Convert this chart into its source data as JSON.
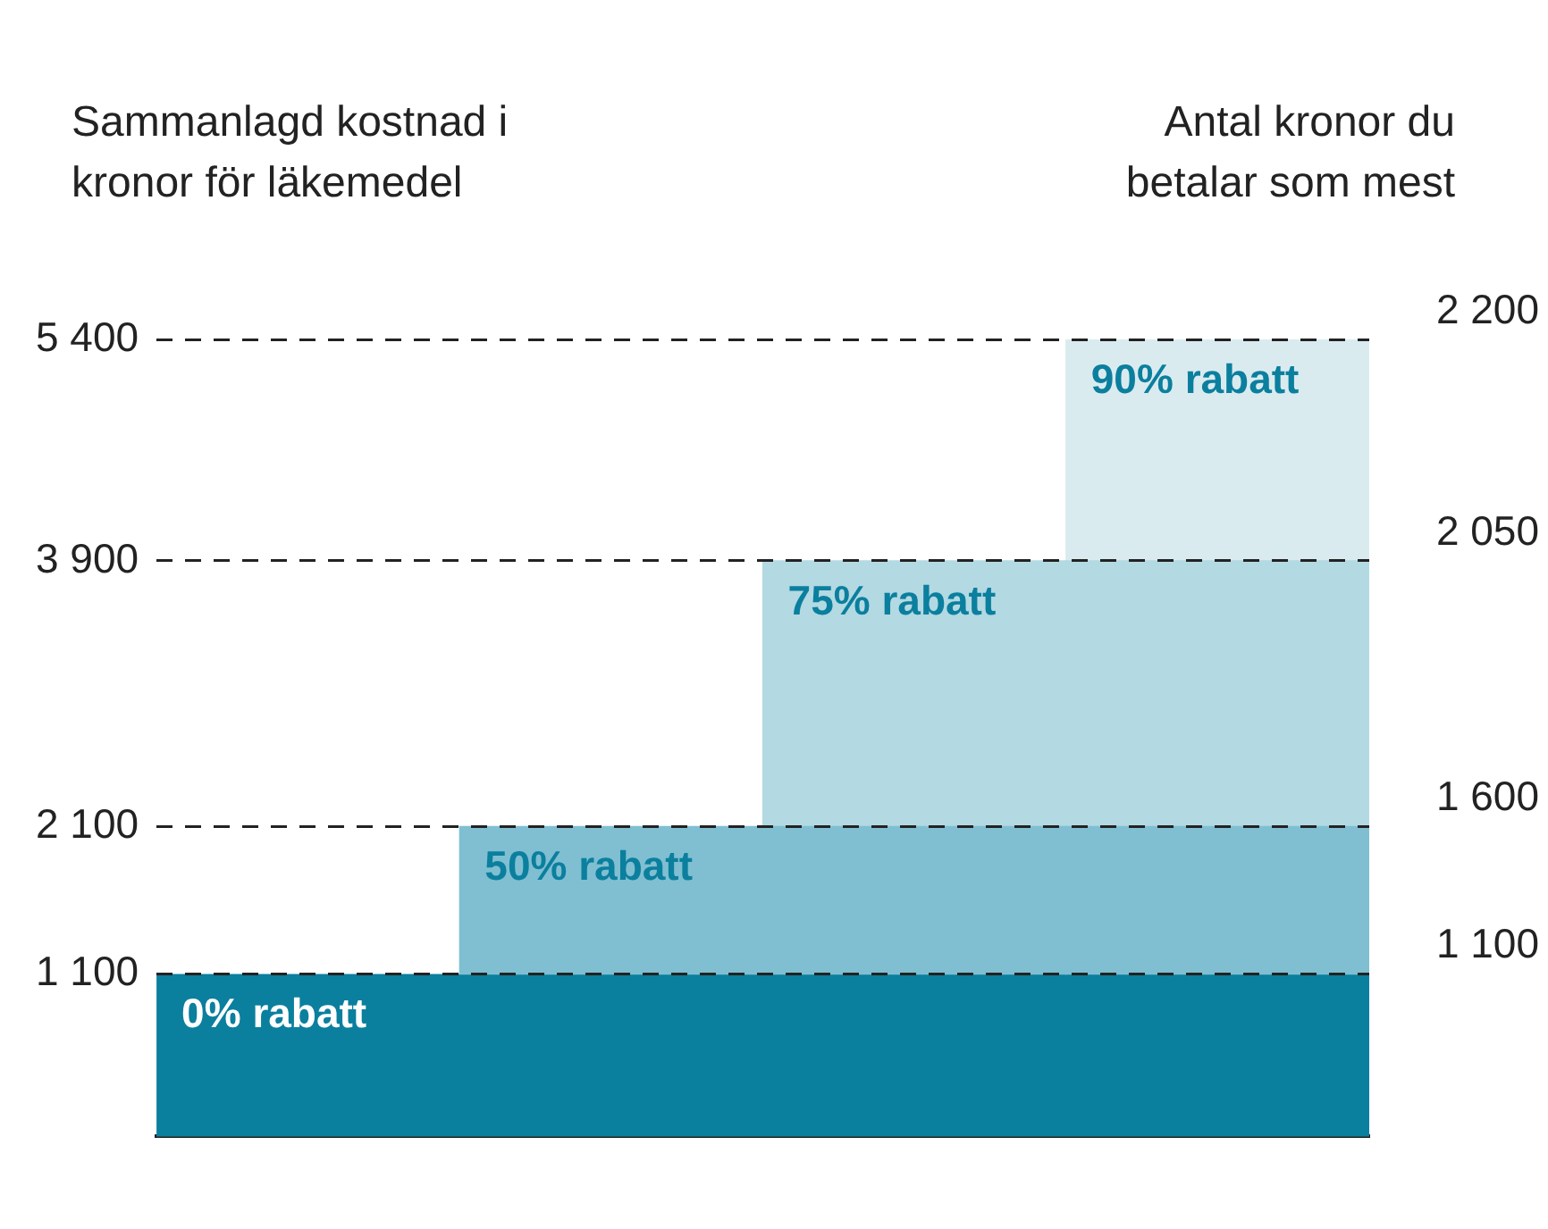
{
  "chart_data": {
    "type": "bar",
    "ylabel": "Sammanlagd kostnad i kronor för läkemedel",
    "annotations": [
      "Antal kronor du betalar som mest",
      "1 100",
      "1 600",
      "2 050",
      "2 200"
    ],
    "categories": [
      null,
      null,
      null,
      null
    ],
    "series": [
      {
        "name": "50% rabatt",
        "color": "#7fbfd1",
        "values": [
          null,
          1000,
          1000,
          1000
        ],
        "base": [
          null,
          1100,
          1100,
          1100
        ]
      },
      {
        "name": "75% rabatt",
        "color": "#b3d9e3",
        "values": [
          null,
          null,
          1800,
          1800
        ],
        "base": [
          null,
          null,
          2100,
          2100
        ]
      },
      {
        "name": "90% rabatt",
        "color": "#daebf0",
        "values": [
          null,
          null,
          null,
          1500
        ],
        "base": [
          null,
          null,
          null,
          3900
        ]
      }
    ],
    "bands": [
      {
        "axis": "y",
        "from": 0,
        "to": 1100,
        "label": "0% rabatt",
        "color": "#0b7f9e"
      }
    ],
    "ylim": [
      0,
      5400
    ],
    "yticks": [
      {
        "value": 1100,
        "label": "1 100"
      },
      {
        "value": 2100,
        "label": "2 100"
      },
      {
        "value": 3900,
        "label": "3 900"
      },
      {
        "value": 5400,
        "label": "5 400"
      }
    ],
    "grid": "y",
    "legend": false
  }
}
